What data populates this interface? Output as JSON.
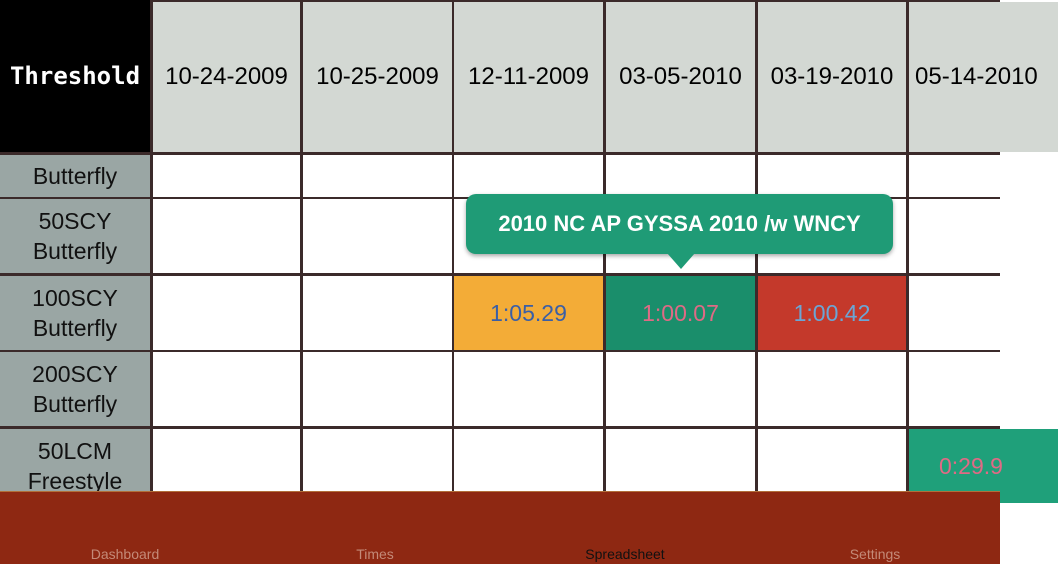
{
  "table": {
    "corner_label": "Threshold",
    "columns": [
      "10-24-2009",
      "10-25-2009",
      "12-11-2009",
      "03-05-2010",
      "03-19-2010",
      "05-14-2010"
    ],
    "rows": [
      {
        "label": "Butterfly",
        "cells": [
          "",
          "",
          "",
          "",
          "",
          ""
        ]
      },
      {
        "label": "50SCY Butterfly",
        "cells": [
          "",
          "",
          "",
          "",
          "",
          ""
        ]
      },
      {
        "label": "100SCY Butterfly",
        "cells": [
          "",
          "",
          "1:05.29",
          "1:00.07",
          "1:00.42",
          ""
        ]
      },
      {
        "label": "200SCY Butterfly",
        "cells": [
          "",
          "",
          "",
          "",
          "",
          ""
        ]
      },
      {
        "label": "50LCM Freestyle",
        "cells": [
          "",
          "",
          "",
          "",
          "",
          "0:29.9"
        ]
      }
    ],
    "cell_styles": {
      "2-2": {
        "bg": "#f3ac37",
        "fg": "#3a5fa6"
      },
      "2-3": {
        "bg": "#1a8e6b",
        "fg": "#e06a85"
      },
      "2-4": {
        "bg": "#c4392b",
        "fg": "#6aa6d6"
      },
      "4-5": {
        "bg": "#1fa07a",
        "fg": "#e06a85"
      }
    }
  },
  "tooltip": {
    "text": "2010 NC AP GYSSA 2010 /w WNCY"
  },
  "tabbar": {
    "tabs": [
      {
        "label": "Dashboard",
        "active": false
      },
      {
        "label": "Times",
        "active": false
      },
      {
        "label": "Spreadsheet",
        "active": true
      },
      {
        "label": "Settings",
        "active": false
      }
    ]
  },
  "colors": {
    "header_bg": "#d3d8d3",
    "row_label_bg": "#9aa6a4",
    "grid_line": "#3b2a2a",
    "tabbar_bg": "#8e2812",
    "tooltip_bg": "#1f9b76"
  }
}
